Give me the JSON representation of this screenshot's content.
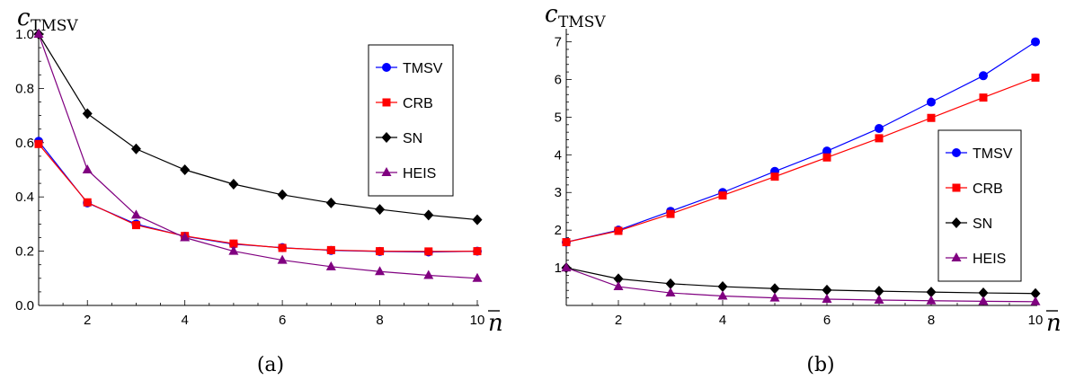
{
  "chart_data": [
    {
      "type": "line",
      "panel_label": "(a)",
      "ylabel": "c",
      "ylabel_sub": "TMSV",
      "xlabel": "n",
      "xlim": [
        1,
        10
      ],
      "ylim": [
        0,
        1.0
      ],
      "x_ticks": [
        "2",
        "4",
        "6",
        "8",
        "10"
      ],
      "y_ticks": [
        "0.0",
        "0.2",
        "0.4",
        "0.6",
        "0.8",
        "1.0"
      ],
      "legend_placement": "top-right",
      "x": [
        1,
        2,
        3,
        4,
        5,
        6,
        7,
        8,
        9,
        10
      ],
      "series": [
        {
          "name": "TMSV",
          "color": "#0000ff",
          "marker": "circle",
          "values": [
            0.605,
            0.378,
            0.3,
            0.255,
            0.226,
            0.213,
            0.203,
            0.199,
            0.197,
            0.2
          ]
        },
        {
          "name": "CRB",
          "color": "#ff0000",
          "marker": "square",
          "values": [
            0.595,
            0.38,
            0.296,
            0.256,
            0.228,
            0.212,
            0.204,
            0.2,
            0.199,
            0.2
          ]
        },
        {
          "name": "SN",
          "color": "#000000",
          "marker": "diamond",
          "values": [
            1.0,
            0.707,
            0.577,
            0.5,
            0.447,
            0.408,
            0.378,
            0.354,
            0.333,
            0.316
          ]
        },
        {
          "name": "HEIS",
          "color": "#800080",
          "marker": "triangle",
          "values": [
            1.0,
            0.5,
            0.333,
            0.25,
            0.2,
            0.167,
            0.143,
            0.125,
            0.111,
            0.1
          ]
        }
      ]
    },
    {
      "type": "line",
      "panel_label": "(b)",
      "ylabel": "c",
      "ylabel_sub": "TMSV",
      "xlabel": "n",
      "xlim": [
        1,
        10
      ],
      "ylim": [
        0,
        7.3
      ],
      "x_ticks": [
        "2",
        "4",
        "6",
        "8",
        "10"
      ],
      "y_ticks": [
        "1",
        "2",
        "3",
        "4",
        "5",
        "6",
        "7"
      ],
      "legend_placement": "center-right",
      "x": [
        1,
        2,
        3,
        4,
        5,
        6,
        7,
        8,
        9,
        10
      ],
      "series": [
        {
          "name": "TMSV",
          "color": "#0000ff",
          "marker": "circle",
          "values": [
            1.68,
            2.0,
            2.5,
            3.0,
            3.56,
            4.1,
            4.7,
            5.4,
            6.1,
            7.0
          ]
        },
        {
          "name": "CRB",
          "color": "#ff0000",
          "marker": "square",
          "values": [
            1.68,
            1.98,
            2.43,
            2.92,
            3.42,
            3.93,
            4.44,
            4.98,
            5.52,
            6.05
          ]
        },
        {
          "name": "SN",
          "color": "#000000",
          "marker": "diamond",
          "values": [
            1.0,
            0.707,
            0.577,
            0.5,
            0.447,
            0.408,
            0.378,
            0.354,
            0.333,
            0.316
          ]
        },
        {
          "name": "HEIS",
          "color": "#800080",
          "marker": "triangle",
          "values": [
            1.0,
            0.5,
            0.333,
            0.25,
            0.2,
            0.167,
            0.143,
            0.125,
            0.111,
            0.1
          ]
        }
      ]
    }
  ]
}
